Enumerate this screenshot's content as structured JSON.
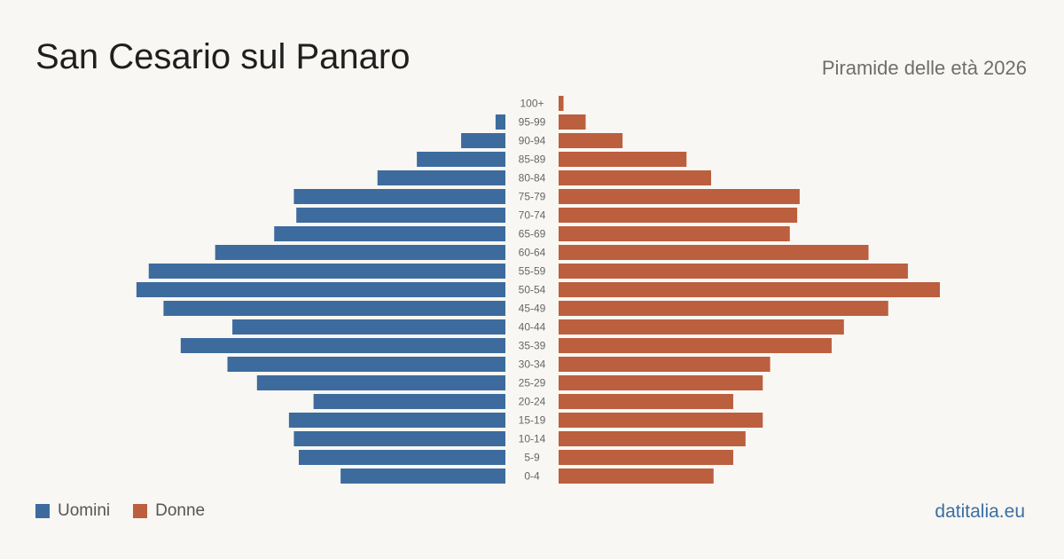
{
  "header": {
    "title": "San Cesario sul Panaro",
    "subtitle": "Piramide delle età 2026"
  },
  "legend": {
    "men_label": "Uomini",
    "women_label": "Donne"
  },
  "footer": {
    "brand": "datitalia.eu"
  },
  "colors": {
    "men": "#3d6b9e",
    "women": "#bb5f3f",
    "background": "#f9f7f3"
  },
  "chart_data": {
    "type": "bar",
    "orientation": "horizontal-pyramid",
    "title": "San Cesario sul Panaro",
    "subtitle": "Piramide delle età 2026",
    "categories": [
      "100+",
      "95-99",
      "90-94",
      "85-89",
      "80-84",
      "75-79",
      "70-74",
      "65-69",
      "60-64",
      "55-59",
      "50-54",
      "45-49",
      "40-44",
      "35-39",
      "30-34",
      "25-29",
      "20-24",
      "15-19",
      "10-14",
      "5-9",
      "0-4"
    ],
    "series": [
      {
        "name": "Uomini",
        "values": [
          0,
          4,
          18,
          36,
          52,
          86,
          85,
          94,
          118,
          145,
          150,
          139,
          111,
          132,
          113,
          101,
          78,
          88,
          86,
          84,
          67
        ]
      },
      {
        "name": "Donne",
        "values": [
          2,
          11,
          26,
          52,
          62,
          98,
          97,
          94,
          126,
          142,
          155,
          134,
          116,
          111,
          86,
          83,
          71,
          83,
          76,
          71,
          63
        ]
      }
    ],
    "grid": false,
    "legend_position": "bottom-left"
  }
}
